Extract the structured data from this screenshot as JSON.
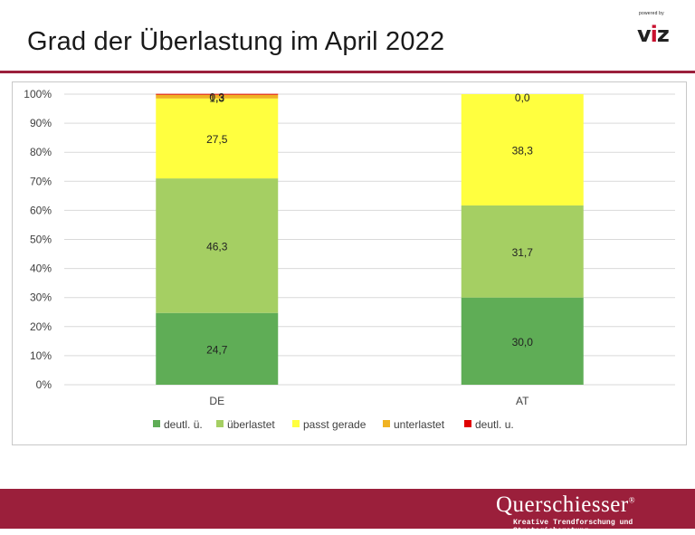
{
  "page": {
    "title": "Grad der Überlastung im April 2022",
    "logo_powered_by": "powered by",
    "logo_text_v": "v",
    "logo_text_i": "i",
    "logo_text_z": "z",
    "brand_name": "Querschiesser",
    "brand_mark": "®",
    "brand_tagline": "Kreative Trendforschung und Strategieberatung",
    "accent_color": "#9b1f3b"
  },
  "chart_data": {
    "type": "bar",
    "stacked": true,
    "categories": [
      "DE",
      "AT"
    ],
    "series": [
      {
        "name": "deutl. ü.",
        "color": "#5fad56",
        "values": [
          24.7,
          30.0
        ],
        "labels": [
          "24,7",
          "30,0"
        ]
      },
      {
        "name": "überlastet",
        "color": "#a5cf63",
        "values": [
          46.3,
          31.7
        ],
        "labels": [
          "46,3",
          "31,7"
        ]
      },
      {
        "name": "passt gerade",
        "color": "#ffff3f",
        "values": [
          27.5,
          38.3
        ],
        "labels": [
          "27,5",
          "38,3"
        ]
      },
      {
        "name": "unterlastet",
        "color": "#f0b323",
        "values": [
          1.3,
          0.0
        ],
        "labels": [
          "1,3",
          "0,0"
        ]
      },
      {
        "name": "deutl. u.",
        "color": "#e00000",
        "values": [
          0.3,
          0.0
        ],
        "labels": [
          "0,3",
          ""
        ]
      }
    ],
    "y_ticks": [
      "0%",
      "10%",
      "20%",
      "30%",
      "40%",
      "50%",
      "60%",
      "70%",
      "80%",
      "90%",
      "100%"
    ],
    "ylim": [
      0,
      100
    ],
    "grid": true,
    "legend_position": "bottom"
  }
}
